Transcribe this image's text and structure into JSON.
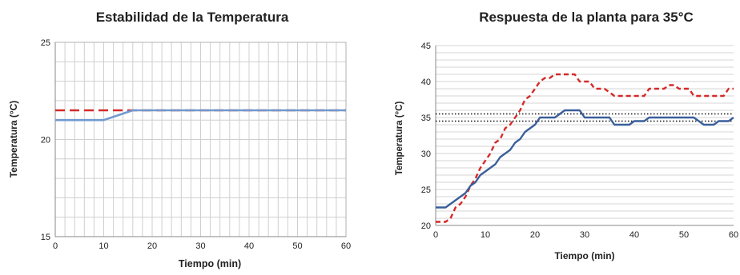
{
  "chart_data": [
    {
      "type": "line",
      "title": "Estabilidad de la Temperatura",
      "xlabel": "Tiempo (min)",
      "ylabel": "Temperatura (°C)",
      "xlim": [
        0,
        60
      ],
      "ylim": [
        15,
        25
      ],
      "xticks": [
        0,
        10,
        20,
        30,
        40,
        50,
        60
      ],
      "yticks": [
        15,
        20,
        25
      ],
      "grid": true,
      "legend": "none",
      "series": [
        {
          "color": "#d42a2a",
          "style": "dashed",
          "x": [
            0,
            60
          ],
          "y": [
            21.5,
            21.5
          ]
        },
        {
          "color": "#6f99d0",
          "style": "solid",
          "x": [
            0,
            10,
            16,
            60
          ],
          "y": [
            21.0,
            21.0,
            21.5,
            21.5
          ]
        }
      ]
    },
    {
      "type": "line",
      "title": "Respuesta de la planta para 35°C",
      "xlabel": "Tiempo (min)",
      "ylabel": "Temperatura (°C)",
      "xlim": [
        0,
        60
      ],
      "ylim": [
        20,
        45
      ],
      "xticks": [
        0,
        10,
        20,
        30,
        40,
        50,
        60
      ],
      "yticks": [
        20,
        25,
        30,
        35,
        40,
        45
      ],
      "grid": true,
      "legend": "none",
      "reference_lines": [
        34.5,
        35.5
      ],
      "series": [
        {
          "color": "#d42a2a",
          "style": "dashed",
          "x": [
            0,
            2,
            3,
            4,
            5,
            6,
            7,
            8,
            9,
            10,
            11,
            12,
            13,
            14,
            15,
            16,
            17,
            18,
            19,
            20,
            21,
            22,
            23,
            24,
            25,
            26,
            27,
            28,
            29,
            30,
            31,
            32,
            33,
            34,
            35,
            36,
            37,
            38,
            39,
            40,
            41,
            42,
            43,
            44,
            45,
            46,
            47,
            48,
            49,
            50,
            51,
            52,
            53,
            54,
            55,
            56,
            57,
            58,
            59,
            60
          ],
          "y": [
            20.5,
            20.5,
            21,
            22.5,
            23,
            24,
            25.5,
            26.5,
            28,
            29,
            30,
            31.5,
            32,
            33.5,
            34,
            35,
            36,
            37.5,
            38,
            39,
            40,
            40.5,
            40.5,
            41,
            41,
            41,
            41,
            41,
            40,
            40,
            40,
            39,
            39,
            39,
            38.5,
            38,
            38,
            38,
            38,
            38,
            38,
            38,
            39,
            39,
            39,
            39,
            39.5,
            39.5,
            39,
            39,
            39,
            38,
            38,
            38,
            38,
            38,
            38,
            38,
            39,
            39
          ]
        },
        {
          "color": "#3a5f9a",
          "style": "solid",
          "x": [
            0,
            2,
            3,
            4,
            5,
            6,
            7,
            8,
            9,
            10,
            11,
            12,
            13,
            14,
            15,
            16,
            17,
            18,
            19,
            20,
            21,
            22,
            23,
            24,
            25,
            26,
            27,
            28,
            29,
            30,
            31,
            32,
            33,
            34,
            35,
            36,
            37,
            38,
            39,
            40,
            41,
            42,
            43,
            44,
            45,
            46,
            47,
            48,
            49,
            50,
            51,
            52,
            53,
            54,
            55,
            56,
            57,
            58,
            59,
            60
          ],
          "y": [
            22.5,
            22.5,
            23,
            23.5,
            24,
            24.5,
            25.5,
            26,
            27,
            27.5,
            28,
            28.5,
            29.5,
            30,
            30.5,
            31.5,
            32,
            33,
            33.5,
            34,
            35,
            35,
            35,
            35,
            35.5,
            36,
            36,
            36,
            36,
            35,
            35,
            35,
            35,
            35,
            35,
            34,
            34,
            34,
            34,
            34.5,
            34.5,
            34.5,
            35,
            35,
            35,
            35,
            35,
            35,
            35,
            35,
            35,
            35,
            34.5,
            34,
            34,
            34,
            34.5,
            34.5,
            34.5,
            35
          ]
        }
      ]
    }
  ]
}
